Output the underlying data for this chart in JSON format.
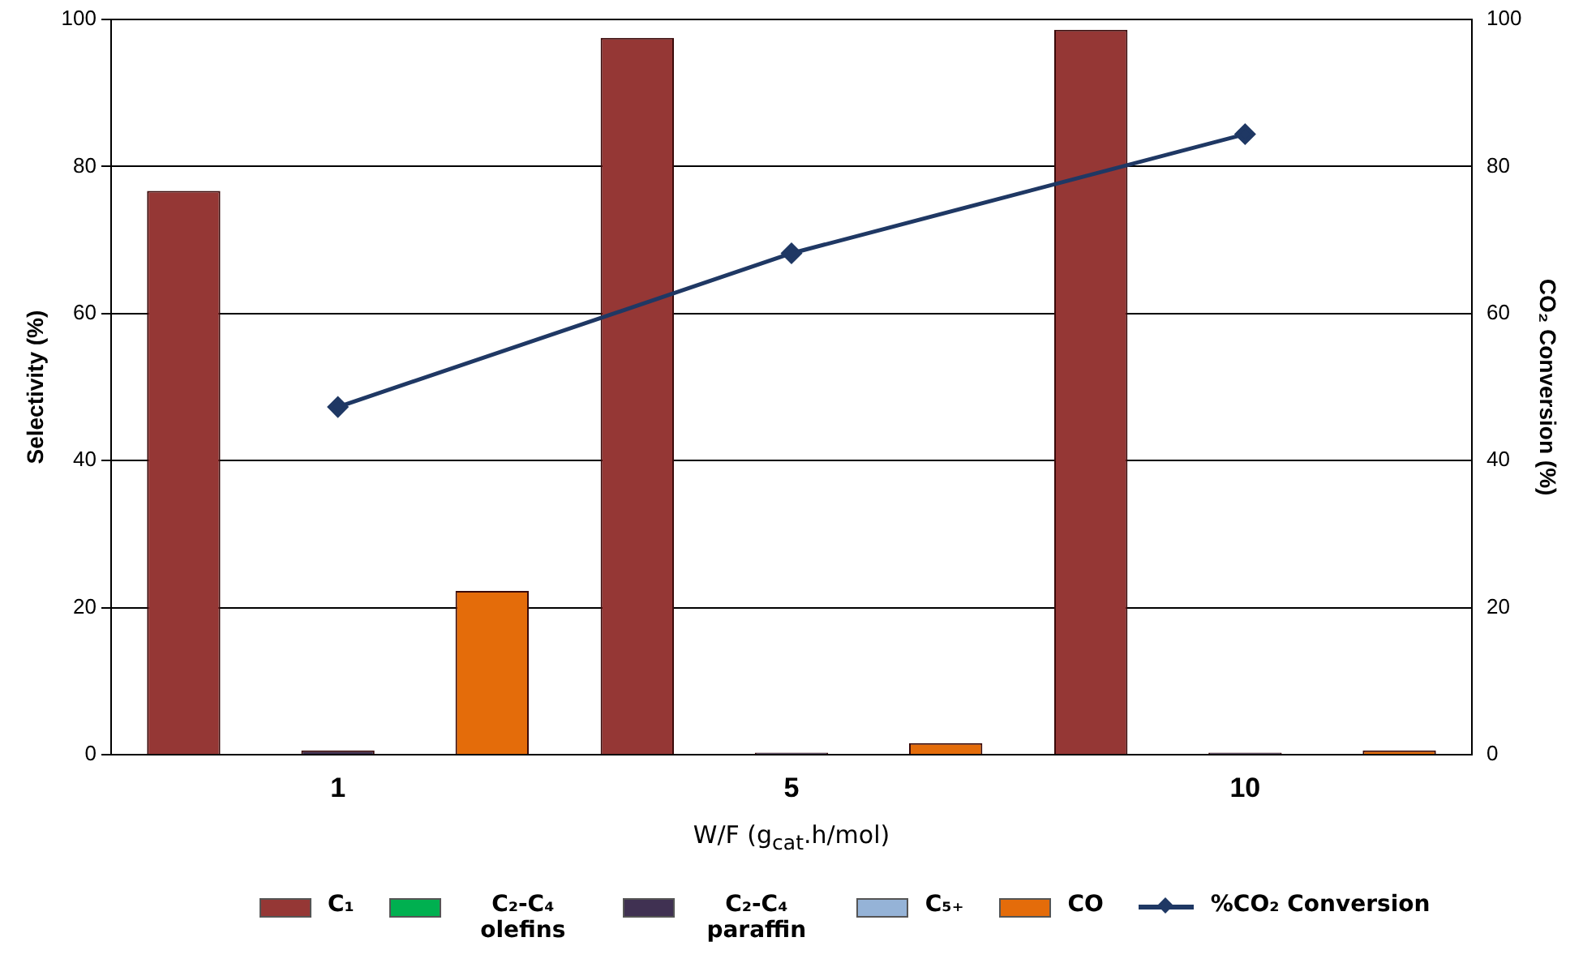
{
  "chart_data": {
    "type": "bar",
    "categories": [
      "1",
      "5",
      "10"
    ],
    "xlabel": "W/F (g$_{cat}$.h/mol)",
    "ylabel": "Selectivity (%)",
    "y2label": "CO₂ Conversion (%)",
    "ylim": [
      0,
      100
    ],
    "yticks": [
      0,
      20,
      40,
      60,
      80,
      100
    ],
    "y2lim": [
      0,
      100
    ],
    "y2ticks": [
      0,
      20,
      40,
      60,
      80,
      100
    ],
    "grid": "y",
    "legend": "bottom",
    "series": [
      {
        "name": "C₁",
        "color": "#953735",
        "values": [
          76.7,
          97.5,
          98.6
        ]
      },
      {
        "name": "C₂-C₄ olefins",
        "color": "#00b050",
        "values": [
          null,
          0,
          0
        ]
      },
      {
        "name": "C₂-C₄ paraffin",
        "color": "#403152",
        "values": [
          0.6,
          0.3,
          0.3
        ]
      },
      {
        "name": "C₅₊",
        "color": "#95b3d7",
        "values": [
          0,
          null,
          null
        ]
      },
      {
        "name": "CO",
        "color": "#e46c0a",
        "values": [
          22.3,
          1.6,
          0.6
        ]
      },
      {
        "name": "%CO₂ Conversion",
        "type": "line",
        "axis": "y2",
        "color": "#1f3864",
        "marker": "diamond",
        "values": [
          47.3,
          68.2,
          84.4
        ]
      }
    ]
  }
}
